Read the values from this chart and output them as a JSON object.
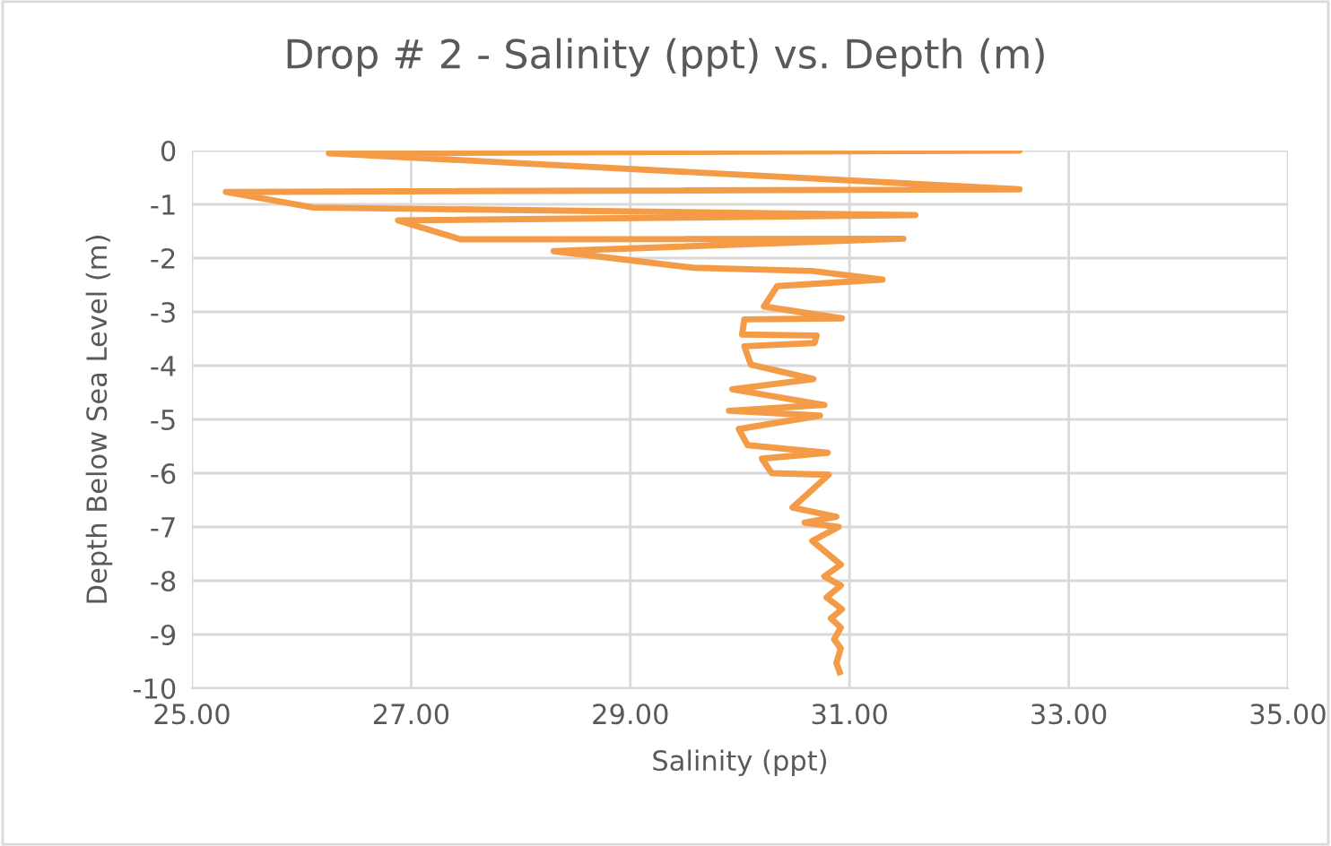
{
  "chart_data": {
    "type": "line",
    "title": "Drop # 2 - Salinity (ppt) vs. Depth (m)",
    "xlabel": "Salinity (ppt)",
    "ylabel": "Depth Below Sea Level (m)",
    "series": [
      {
        "color": "#f49b47",
        "x": [
          27.86,
          32.55,
          26.25,
          32.55,
          25.31,
          26.11,
          31.6,
          26.88,
          27.45,
          31.49,
          28.3,
          29.58,
          30.66,
          31.3,
          30.34,
          30.22,
          30.93,
          30.04,
          30.02,
          30.7,
          30.68,
          30.04,
          30.1,
          30.67,
          29.93,
          30.77,
          29.9,
          30.73,
          29.99,
          30.07,
          30.8,
          30.2,
          30.29,
          30.81,
          30.48,
          30.88,
          30.59,
          30.9,
          30.66,
          30.92,
          30.77,
          30.92,
          30.79,
          30.93,
          30.83,
          30.92,
          30.86,
          30.92,
          30.88,
          30.91
        ],
        "values": [
          0.0,
          0.0,
          -0.05,
          -0.72,
          -0.77,
          -1.06,
          -1.2,
          -1.3,
          -1.65,
          -1.64,
          -1.87,
          -2.18,
          -2.24,
          -2.4,
          -2.52,
          -2.9,
          -3.12,
          -3.14,
          -3.42,
          -3.44,
          -3.58,
          -3.64,
          -3.98,
          -4.25,
          -4.44,
          -4.73,
          -4.84,
          -4.93,
          -5.18,
          -5.48,
          -5.62,
          -5.73,
          -6.0,
          -6.03,
          -6.64,
          -6.81,
          -6.92,
          -7.0,
          -7.26,
          -7.7,
          -7.92,
          -8.09,
          -8.31,
          -8.53,
          -8.7,
          -8.87,
          -9.09,
          -9.26,
          -9.53,
          -9.7
        ]
      }
    ],
    "xlim": [
      25,
      35
    ],
    "xticks": [
      {
        "value": 25,
        "label": "25.00"
      },
      {
        "value": 27,
        "label": "27.00"
      },
      {
        "value": 29,
        "label": "29.00"
      },
      {
        "value": 31,
        "label": "31.00"
      },
      {
        "value": 33,
        "label": "33.00"
      },
      {
        "value": 35,
        "label": "35.00"
      }
    ],
    "ylim": [
      -10,
      0
    ],
    "yticks": [
      0,
      -1,
      -2,
      -3,
      -4,
      -5,
      -6,
      -7,
      -8,
      -9,
      -10
    ],
    "grid": true,
    "marker": "none",
    "line_style": "solid",
    "legend": false
  }
}
